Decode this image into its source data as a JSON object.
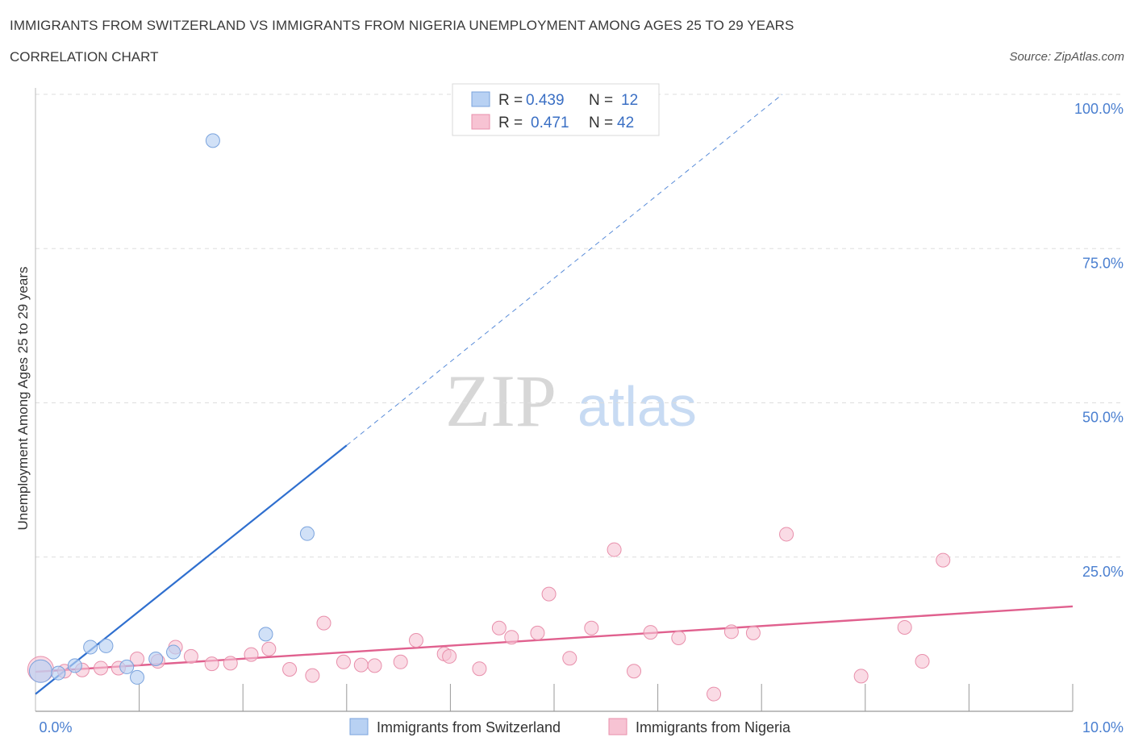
{
  "title": "IMMIGRANTS FROM SWITZERLAND VS IMMIGRANTS FROM NIGERIA UNEMPLOYMENT AMONG AGES 25 TO 29 YEARS",
  "subtitle": "CORRELATION CHART",
  "source": "Source: ZipAtlas.com",
  "watermark": {
    "zip": "ZIP",
    "atlas": "atlas"
  },
  "colors": {
    "switzerland_fill": "#b8d1f3",
    "switzerland_stroke": "#7aa3dd",
    "switzerland_line": "#2f6fcf",
    "nigeria_fill": "#f7c3d3",
    "nigeria_stroke": "#e88fab",
    "nigeria_line": "#e0608e",
    "tick": "#4a7fd0",
    "grid": "#dddddd"
  },
  "legend": {
    "rows": [
      {
        "r_label": "R =",
        "r_value": "0.439",
        "n_label": "N =",
        "n_value": "12"
      },
      {
        "r_label": "R =",
        "r_value": "0.471",
        "n_label": "N =",
        "n_value": "42"
      }
    ]
  },
  "bottom_legend": [
    "Immigrants from Switzerland",
    "Immigrants from Nigeria"
  ],
  "chart_data": {
    "type": "scatter",
    "title": "IMMIGRANTS FROM SWITZERLAND VS IMMIGRANTS FROM NIGERIA UNEMPLOYMENT AMONG AGES 25 TO 29 YEARS",
    "xlabel": "",
    "ylabel": "Unemployment Among Ages 25 to 29 years",
    "xlim": [
      0,
      10
    ],
    "ylim": [
      0,
      100
    ],
    "x_ticks": [
      "0.0%",
      "10.0%"
    ],
    "y_ticks": [
      {
        "value": 25,
        "label": "25.0%"
      },
      {
        "value": 50,
        "label": "50.0%"
      },
      {
        "value": 75,
        "label": "75.0%"
      },
      {
        "value": 100,
        "label": "100.0%"
      }
    ],
    "series": [
      {
        "name": "Immigrants from Switzerland",
        "R": 0.439,
        "N": 12,
        "points": [
          {
            "x": 0.05,
            "y": 6.5,
            "big": true
          },
          {
            "x": 0.22,
            "y": 6.2
          },
          {
            "x": 0.38,
            "y": 7.4
          },
          {
            "x": 0.53,
            "y": 10.4
          },
          {
            "x": 0.68,
            "y": 10.6
          },
          {
            "x": 0.88,
            "y": 7.2
          },
          {
            "x": 0.98,
            "y": 5.5
          },
          {
            "x": 1.16,
            "y": 8.5
          },
          {
            "x": 1.33,
            "y": 9.6
          },
          {
            "x": 1.71,
            "y": 92.5
          },
          {
            "x": 2.22,
            "y": 12.5
          },
          {
            "x": 2.62,
            "y": 28.8
          }
        ],
        "trend": {
          "x0": 0.0,
          "y0": 2.8,
          "x1": 3.0,
          "y1": 43.1,
          "dash_to_x": 7.2,
          "dash_to_y": 100
        }
      },
      {
        "name": "Immigrants from Nigeria",
        "R": 0.471,
        "N": 42,
        "points": [
          {
            "x": 0.05,
            "y": 6.8,
            "big": true
          },
          {
            "x": 0.28,
            "y": 6.5
          },
          {
            "x": 0.45,
            "y": 6.7
          },
          {
            "x": 0.63,
            "y": 7.0
          },
          {
            "x": 0.8,
            "y": 7.0
          },
          {
            "x": 0.98,
            "y": 8.5
          },
          {
            "x": 1.18,
            "y": 8.1
          },
          {
            "x": 1.35,
            "y": 10.4
          },
          {
            "x": 1.5,
            "y": 8.9
          },
          {
            "x": 1.7,
            "y": 7.7
          },
          {
            "x": 1.88,
            "y": 7.8
          },
          {
            "x": 2.08,
            "y": 9.2
          },
          {
            "x": 2.25,
            "y": 10.1
          },
          {
            "x": 2.45,
            "y": 6.8
          },
          {
            "x": 2.67,
            "y": 5.8
          },
          {
            "x": 2.78,
            "y": 14.3
          },
          {
            "x": 2.97,
            "y": 8.0
          },
          {
            "x": 3.14,
            "y": 7.5
          },
          {
            "x": 3.27,
            "y": 7.4
          },
          {
            "x": 3.52,
            "y": 8.0
          },
          {
            "x": 3.67,
            "y": 11.5
          },
          {
            "x": 3.94,
            "y": 9.3
          },
          {
            "x": 3.99,
            "y": 8.9
          },
          {
            "x": 4.28,
            "y": 6.9
          },
          {
            "x": 4.47,
            "y": 13.5
          },
          {
            "x": 4.59,
            "y": 12.0
          },
          {
            "x": 4.84,
            "y": 12.7
          },
          {
            "x": 4.95,
            "y": 19.0
          },
          {
            "x": 5.15,
            "y": 8.6
          },
          {
            "x": 5.36,
            "y": 13.5
          },
          {
            "x": 5.58,
            "y": 26.2
          },
          {
            "x": 5.77,
            "y": 6.5
          },
          {
            "x": 5.93,
            "y": 12.8
          },
          {
            "x": 6.2,
            "y": 11.9
          },
          {
            "x": 6.54,
            "y": 2.8
          },
          {
            "x": 6.71,
            "y": 12.9
          },
          {
            "x": 6.92,
            "y": 12.7
          },
          {
            "x": 7.24,
            "y": 28.7
          },
          {
            "x": 7.96,
            "y": 5.7
          },
          {
            "x": 8.38,
            "y": 13.6
          },
          {
            "x": 8.55,
            "y": 8.1
          },
          {
            "x": 8.75,
            "y": 24.5
          }
        ],
        "trend": {
          "x0": 0.0,
          "y0": 6.4,
          "x1": 10.0,
          "y1": 17.0
        }
      }
    ]
  }
}
